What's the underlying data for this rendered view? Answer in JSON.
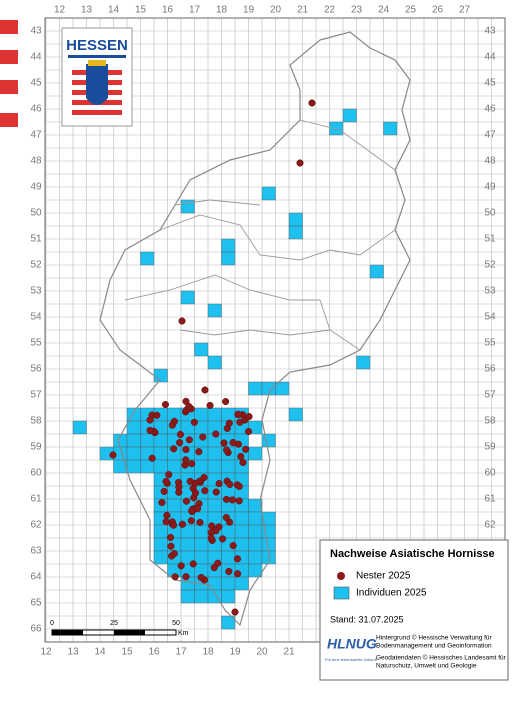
{
  "header": {
    "title": "HESSEN"
  },
  "grid": {
    "columns_top": [
      12,
      13,
      14,
      15,
      16,
      17,
      18,
      19,
      20,
      21,
      22,
      23,
      24,
      25,
      26,
      27
    ],
    "columns_bottom": [
      12,
      13,
      14,
      15,
      16,
      17,
      18,
      19,
      20,
      21
    ],
    "rows_left": [
      43,
      44,
      45,
      46,
      47,
      48,
      49,
      50,
      51,
      52,
      53,
      54,
      55,
      56,
      57,
      58,
      59,
      60,
      61,
      62,
      63,
      64,
      65,
      66
    ],
    "rows_right": [
      43,
      44,
      45,
      46,
      47,
      48,
      49,
      50,
      51,
      52,
      53,
      54,
      55,
      56,
      57,
      58,
      59,
      60,
      61,
      62
    ]
  },
  "scale": {
    "labels": [
      "0",
      "25",
      "50"
    ],
    "unit": "Km"
  },
  "legend": {
    "title": "Nachweise Asiatische Hornisse",
    "items": [
      "Nester 2025",
      "Individuen 2025"
    ],
    "date": "Stand: 31.07.2025"
  },
  "credits": {
    "logo": "HLNUG",
    "slogan": "Für eine lebenswerte Zukunft",
    "lines": [
      "Hintergrund © Hessische Verwaltung für",
      "Bodenmanagement und Geoinformation",
      "Geodatendaten © Hessisches Landesamt für",
      "Naturschutz, Umwelt und Geologie"
    ]
  }
}
